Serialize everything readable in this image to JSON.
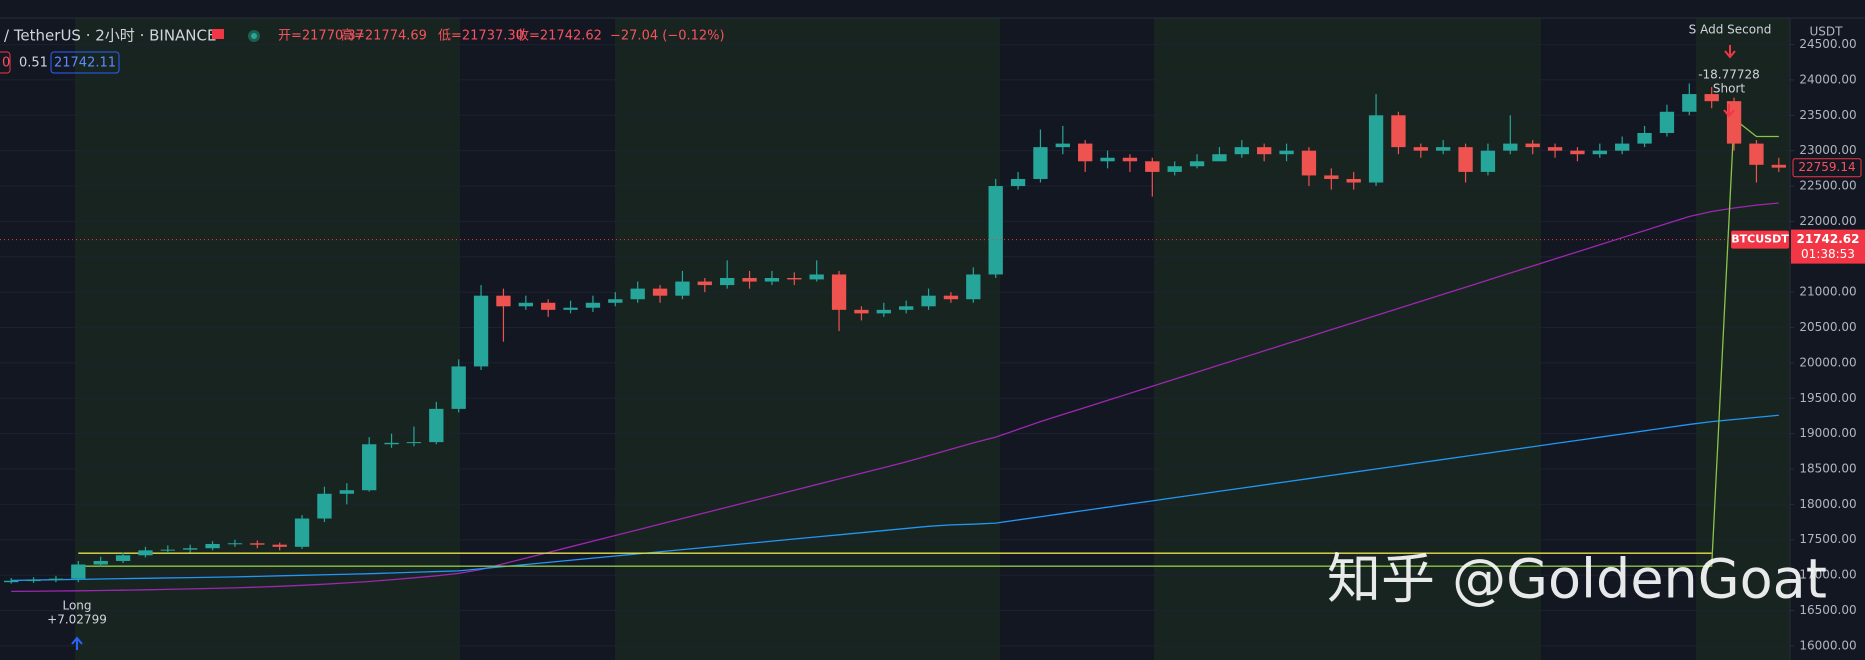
{
  "header": {
    "symbol": "/ TetherUS · 2小时 · BINANCE",
    "open": "开=21770.37",
    "high": "高=21774.69",
    "low": "低=21737.30",
    "close": "收=21742.62",
    "change": "−27.04 (−0.12%)",
    "indicator_a": "0",
    "indicator_b": "0.51",
    "indicator_c": "21742.11",
    "currency": "USDT"
  },
  "annotations": {
    "short_entry": "S Add Second",
    "short_profit": "-18.77728",
    "short_label": "Short",
    "long_label": "Long",
    "long_profit": "+7.02799"
  },
  "watermark": "知乎 @GoldenGoat",
  "chart_data": {
    "type": "candlestick",
    "up_color": "#26a69a",
    "down_color": "#ef5350",
    "grid": true,
    "ylim": [
      15800,
      25130
    ],
    "yticks": [
      {
        "value": 16000,
        "label": "16000.00"
      },
      {
        "value": 16500,
        "label": "16500.00"
      },
      {
        "value": 17000,
        "label": "17000.00"
      },
      {
        "value": 17500,
        "label": "17500.00"
      },
      {
        "value": 18000,
        "label": "18000.00"
      },
      {
        "value": 18500,
        "label": "18500.00"
      },
      {
        "value": 19000,
        "label": "19000.00"
      },
      {
        "value": 19500,
        "label": "19500.00"
      },
      {
        "value": 20000,
        "label": "20000.00"
      },
      {
        "value": 20500,
        "label": "20500.00"
      },
      {
        "value": 21000,
        "label": "21000.00"
      },
      {
        "value": 21500,
        "label": "21500.00"
      },
      {
        "value": 22000,
        "label": "22000.00"
      },
      {
        "value": 22500,
        "label": "22500.00"
      },
      {
        "value": 23000,
        "label": "23000.00"
      },
      {
        "value": 23500,
        "label": "23500.00"
      },
      {
        "value": 24000,
        "label": "24000.00"
      },
      {
        "value": 24500,
        "label": "24500.00"
      }
    ],
    "open": [
      16900,
      16920,
      16930,
      16950,
      17150,
      17200,
      17280,
      17350,
      17360,
      17380,
      17440,
      17450,
      17430,
      17400,
      17800,
      18150,
      18200,
      18850,
      18870,
      18880,
      19350,
      19950,
      20950,
      20800,
      20850,
      20750,
      20780,
      20850,
      20900,
      21050,
      20950,
      21150,
      21100,
      21200,
      21150,
      21200,
      21180,
      21250,
      20750,
      20700,
      20750,
      20800,
      20950,
      20900,
      21250,
      22500,
      22600,
      23050,
      23100,
      22850,
      22900,
      22850,
      22700,
      22780,
      22850,
      22950,
      23050,
      22950,
      23000,
      22650,
      22600,
      22550,
      23500,
      23050,
      23000,
      23050,
      22700,
      23000,
      23100,
      23050,
      23000,
      22950,
      23000,
      23100,
      23250,
      23550,
      23800,
      23700,
      23100,
      22800
    ],
    "high": [
      16960,
      16970,
      16990,
      17200,
      17260,
      17320,
      17400,
      17420,
      17430,
      17480,
      17500,
      17490,
      17460,
      17850,
      18250,
      18300,
      18950,
      19000,
      19100,
      19450,
      20050,
      21100,
      21050,
      20950,
      20900,
      20880,
      20950,
      21000,
      21150,
      21100,
      21300,
      21200,
      21450,
      21300,
      21300,
      21280,
      21450,
      21300,
      20800,
      20850,
      20880,
      21050,
      21000,
      21350,
      22600,
      22700,
      23300,
      23350,
      23150,
      23000,
      22950,
      22900,
      22850,
      22950,
      23050,
      23150,
      23100,
      23100,
      23050,
      22750,
      22700,
      23800,
      23550,
      23100,
      23150,
      23100,
      23100,
      23500,
      23150,
      23100,
      23050,
      23100,
      23200,
      23350,
      23650,
      23950,
      23900,
      23750,
      23150,
      22900
    ],
    "low": [
      16880,
      16890,
      16900,
      16900,
      17120,
      17170,
      17250,
      17310,
      17320,
      17350,
      17400,
      17380,
      17350,
      17370,
      17750,
      18000,
      18180,
      18800,
      18820,
      18850,
      19300,
      19900,
      20300,
      20750,
      20650,
      20700,
      20720,
      20800,
      20850,
      20850,
      20900,
      21000,
      21050,
      21050,
      21100,
      21100,
      21150,
      20450,
      20600,
      20650,
      20700,
      20750,
      20850,
      20850,
      21200,
      22450,
      22550,
      22950,
      22700,
      22750,
      22700,
      22350,
      22650,
      22750,
      22850,
      22900,
      22850,
      22850,
      22500,
      22450,
      22450,
      22500,
      22950,
      22900,
      22950,
      22550,
      22650,
      22950,
      22950,
      22900,
      22850,
      22900,
      22950,
      23050,
      23200,
      23500,
      23600,
      23000,
      22550,
      22700
    ],
    "close": [
      16920,
      16930,
      16950,
      17150,
      17200,
      17280,
      17350,
      17360,
      17380,
      17440,
      17450,
      17430,
      17400,
      17800,
      18150,
      18200,
      18850,
      18870,
      18880,
      19350,
      19950,
      20950,
      20800,
      20850,
      20750,
      20780,
      20850,
      20900,
      21050,
      20950,
      21150,
      21100,
      21200,
      21150,
      21200,
      21180,
      21250,
      20750,
      20700,
      20750,
      20800,
      20950,
      20900,
      21250,
      22500,
      22600,
      23050,
      23100,
      22850,
      22900,
      22850,
      22700,
      22780,
      22850,
      22950,
      23050,
      22950,
      23000,
      22650,
      22600,
      22550,
      23500,
      23050,
      23000,
      23050,
      22700,
      23000,
      23100,
      23050,
      23000,
      22950,
      23000,
      23100,
      23250,
      23550,
      23800,
      23700,
      23100,
      22800,
      22760
    ],
    "lines": [
      {
        "color": "#9c27b0",
        "values": [
          16770,
          16772,
          16775,
          16778,
          16782,
          16787,
          16792,
          16798,
          16805,
          16812,
          16820,
          16830,
          16842,
          16856,
          16872,
          16890,
          16910,
          16935,
          16962,
          16990,
          17025,
          17080,
          17160,
          17240,
          17320,
          17400,
          17480,
          17560,
          17640,
          17720,
          17800,
          17880,
          17960,
          18040,
          18120,
          18200,
          18280,
          18360,
          18440,
          18520,
          18600,
          18690,
          18780,
          18870,
          18950,
          19060,
          19170,
          19270,
          19370,
          19470,
          19570,
          19670,
          19770,
          19870,
          19970,
          20070,
          20170,
          20270,
          20370,
          20470,
          20570,
          20670,
          20770,
          20870,
          20970,
          21070,
          21170,
          21270,
          21370,
          21470,
          21570,
          21670,
          21770,
          21870,
          21970,
          22070,
          22140,
          22190,
          22230,
          22260
        ]
      },
      {
        "color": "#2196f3",
        "values": [
          16925,
          16930,
          16935,
          16940,
          16945,
          16950,
          16955,
          16960,
          16965,
          16970,
          16975,
          16982,
          16990,
          16997,
          17005,
          17012,
          17020,
          17030,
          17040,
          17050,
          17060,
          17090,
          17120,
          17150,
          17180,
          17210,
          17240,
          17270,
          17300,
          17330,
          17360,
          17390,
          17420,
          17450,
          17480,
          17510,
          17540,
          17570,
          17600,
          17630,
          17660,
          17690,
          17710,
          17720,
          17735,
          17780,
          17825,
          17870,
          17915,
          17960,
          18005,
          18050,
          18095,
          18140,
          18185,
          18230,
          18275,
          18320,
          18365,
          18410,
          18455,
          18500,
          18545,
          18590,
          18635,
          18680,
          18725,
          18770,
          18815,
          18860,
          18905,
          18950,
          18995,
          19040,
          19085,
          19130,
          19170,
          19200,
          19230,
          19260
        ]
      },
      {
        "color": "#e6e14a",
        "values": [
          null,
          null,
          null,
          17310,
          17310,
          17310,
          17310,
          17310,
          17310,
          17310,
          17310,
          17310,
          17310,
          17310,
          17310,
          17310,
          17310,
          17310,
          17310,
          17310,
          17310,
          17310,
          17310,
          17310,
          17310,
          17310,
          17310,
          17310,
          17310,
          17310,
          17310,
          17310,
          17310,
          17310,
          17310,
          17310,
          17310,
          17310,
          17310,
          17310,
          17310,
          17310,
          17310,
          17310,
          17310,
          17310,
          17310,
          17310,
          17310,
          17310,
          17310,
          17310,
          17310,
          17310,
          17310,
          17310,
          17310,
          17310,
          17310,
          17310,
          17310,
          17310,
          17310,
          17310,
          17310,
          17310,
          17310,
          17310,
          17310,
          17310,
          17310,
          17310,
          17310,
          17310,
          17310,
          17310,
          17310,
          null,
          null,
          null
        ]
      },
      {
        "color": "#8bc34a",
        "values": [
          null,
          null,
          null,
          17126,
          17126,
          17126,
          17126,
          17126,
          17126,
          17126,
          17126,
          17126,
          17126,
          17126,
          17126,
          17126,
          17126,
          17126,
          17126,
          17126,
          17126,
          17126,
          17126,
          17126,
          17126,
          17126,
          17126,
          17126,
          17126,
          17126,
          17126,
          17126,
          17126,
          17126,
          17126,
          17126,
          17126,
          17126,
          17126,
          17126,
          17126,
          17126,
          17126,
          17126,
          17126,
          17126,
          17126,
          17126,
          17126,
          17126,
          17126,
          17126,
          17126,
          17126,
          17126,
          17126,
          17126,
          17126,
          17126,
          17126,
          17126,
          17126,
          17126,
          17126,
          17126,
          17126,
          17126,
          17126,
          17126,
          17126,
          17126,
          17126,
          17126,
          17126,
          17126,
          17126,
          17126,
          23450,
          23200,
          23200
        ]
      }
    ],
    "last_close": 22759.14,
    "symbol_tag": {
      "symbol": "BTCUSDT",
      "price": 21742.62,
      "countdown": "01:38:53"
    }
  }
}
